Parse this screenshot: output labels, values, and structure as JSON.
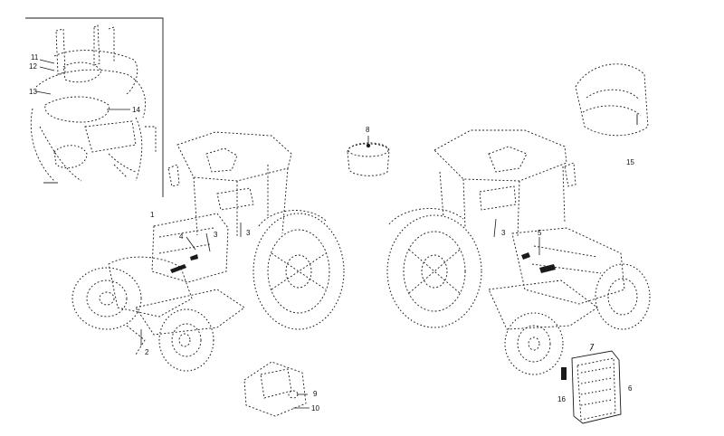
{
  "callouts": {
    "c1": "1",
    "c2": "2",
    "c3a": "3",
    "c3b": "3",
    "c3c": "3",
    "c4": "4",
    "c5": "5",
    "c6": "6",
    "c7": "7",
    "c8": "8",
    "c9": "9",
    "c10": "10",
    "c11": "11",
    "c12": "12",
    "c13": "13",
    "c14": "14",
    "c15": "15",
    "c16": "16"
  }
}
